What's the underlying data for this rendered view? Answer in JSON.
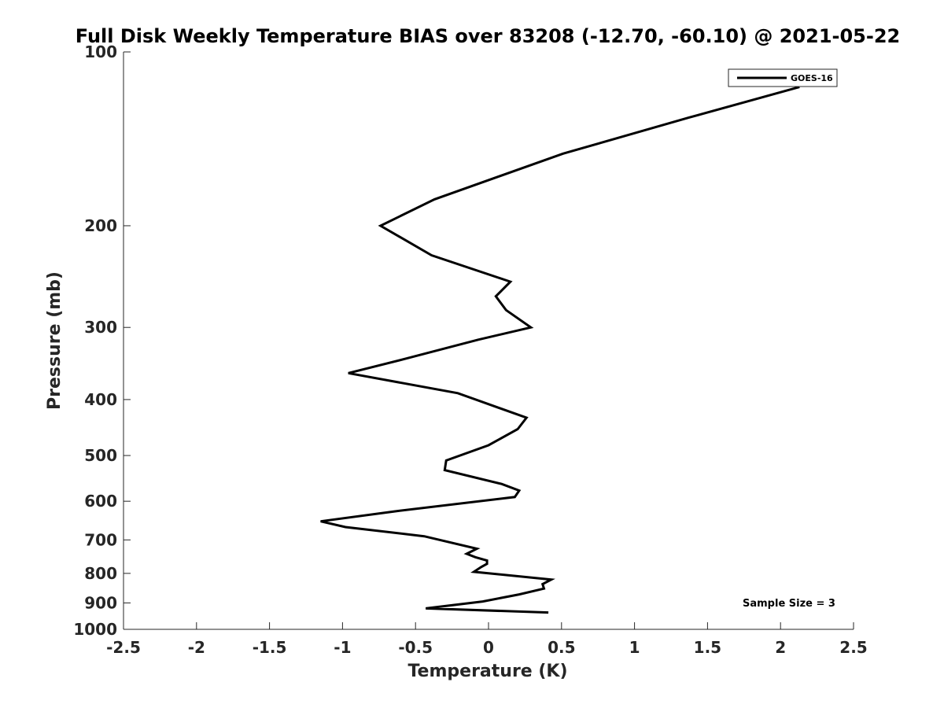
{
  "chart_data": {
    "type": "line",
    "title": "Full Disk Weekly Temperature BIAS over 83208 (-12.70, -60.10) @ 2021-05-22",
    "xlabel": "Temperature (K)",
    "ylabel": "Pressure (mb)",
    "xlim": [
      -2.5,
      2.5
    ],
    "ylim": [
      100,
      1000
    ],
    "y_scale": "log",
    "y_reversed": true,
    "x_ticks": [
      "-2.5",
      "-2",
      "-1.5",
      "-1",
      "-0.5",
      "0",
      "0.5",
      "1",
      "1.5",
      "2",
      "2.5"
    ],
    "x_tick_values": [
      -2.5,
      -2,
      -1.5,
      -1,
      -0.5,
      0,
      0.5,
      1,
      1.5,
      2,
      2.5
    ],
    "y_ticks": [
      "100",
      "200",
      "300",
      "400",
      "500",
      "600",
      "700",
      "800",
      "900",
      "1000"
    ],
    "y_tick_values": [
      100,
      200,
      300,
      400,
      500,
      600,
      700,
      800,
      900,
      1000
    ],
    "grid": false,
    "legend_position": "top-right",
    "annotation": "Sample Size = 3",
    "line_color": "#000000",
    "series": [
      {
        "name": "GOES-16",
        "x": [
          2.13,
          1.37,
          0.51,
          -0.37,
          -0.74,
          -0.39,
          0.15,
          0.05,
          0.12,
          0.29,
          -0.07,
          -0.57,
          -0.96,
          -0.21,
          0.26,
          0.2,
          0.0,
          -0.29,
          -0.3,
          0.09,
          0.21,
          0.18,
          -0.65,
          -1.15,
          -0.98,
          -0.44,
          -0.08,
          -0.15,
          -0.09,
          -0.01,
          -0.01,
          -0.05,
          -0.1,
          0.43,
          0.37,
          0.38,
          0.21,
          -0.04,
          -0.43,
          0.41
        ],
        "y": [
          115,
          130,
          150,
          180,
          200,
          225,
          250,
          265,
          280,
          300,
          315,
          340,
          360,
          390,
          430,
          450,
          480,
          510,
          530,
          560,
          575,
          590,
          625,
          650,
          665,
          690,
          725,
          740,
          750,
          760,
          770,
          780,
          795,
          820,
          835,
          850,
          870,
          895,
          920,
          935
        ]
      }
    ]
  }
}
